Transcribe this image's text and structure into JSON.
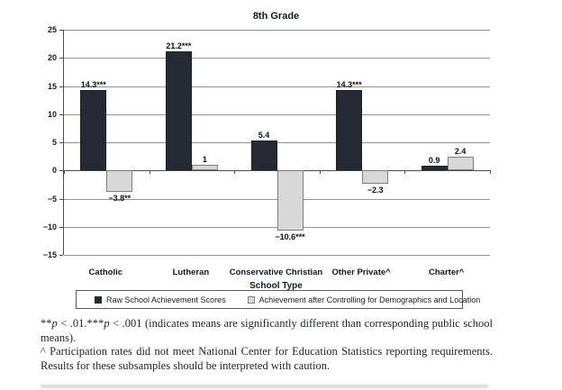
{
  "chart_data": {
    "type": "bar",
    "title": "8th Grade",
    "xlabel": "School Type",
    "ylabel": "",
    "ylim": [
      -15,
      25
    ],
    "grid": true,
    "legend_position": "bottom",
    "yticks": [
      25,
      20,
      15,
      10,
      5,
      0,
      -5,
      -10,
      -15
    ],
    "ytick_labels": [
      "25",
      "20",
      "15",
      "10",
      "5",
      "0",
      "−5",
      "−10",
      "−15"
    ],
    "categories": [
      "Catholic",
      "Lutheran",
      "Conservative Christian",
      "Other Private^",
      "Charter^"
    ],
    "series": [
      {
        "name": "Raw School Achievement Scores",
        "color": "#262a34",
        "values": [
          14.3,
          21.2,
          5.4,
          14.3,
          0.9
        ],
        "labels": [
          "14.3***",
          "21.2***",
          "5.4",
          "14.3***",
          "0.9"
        ]
      },
      {
        "name": "Achievement after Controlling for Demographics and Location",
        "color": "#d8d8d8",
        "values": [
          -3.8,
          1,
          -10.6,
          -2.3,
          2.4
        ],
        "labels": [
          "−3.8**",
          "1",
          "−10.6***",
          "−2.3",
          "2.4"
        ]
      }
    ]
  },
  "footnotes": {
    "sig": {
      "s1": "**",
      "p1": "p",
      "s2": " < .01.***",
      "p2": "p",
      "s3": " < .001 (indicates means are significantly different than corresponding public school means)."
    },
    "participation": "^ Participation rates did not meet National Center for Education Statistics reporting requirements. Results for these subsamples should be interpreted with caution."
  },
  "colors": {
    "raw_series": "#262a34",
    "controlled_series": "#d8d8d8",
    "gridline": "#949494",
    "axis": "#4d4d4d"
  }
}
